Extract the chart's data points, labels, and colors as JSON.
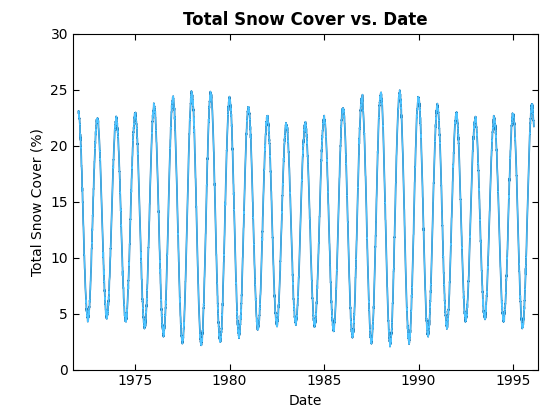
{
  "title": "Total Snow Cover vs. Date",
  "xlabel": "Date",
  "ylabel": "Total Snow Cover (%)",
  "line_color": "#4DC3FF",
  "line_color2": "#1A6FA8",
  "ylim": [
    0,
    30
  ],
  "xlim_start": 1971.7,
  "xlim_end": 1996.3,
  "xticks": [
    1975,
    1980,
    1985,
    1990,
    1995
  ],
  "yticks": [
    0,
    5,
    10,
    15,
    20,
    25,
    30
  ],
  "start_year": 1972.0,
  "end_year": 1996.1,
  "n_points": 5000,
  "base_amplitude": 10.0,
  "base_mean": 13.5,
  "period": 1.0,
  "background_color": "#ffffff",
  "title_fontsize": 12,
  "label_fontsize": 10,
  "tick_fontsize": 10
}
